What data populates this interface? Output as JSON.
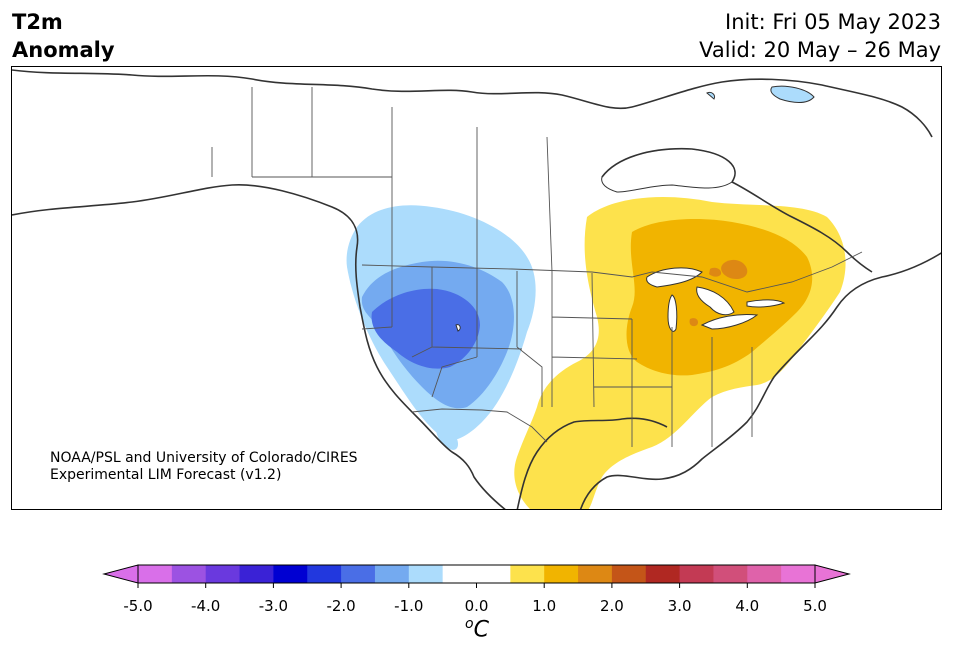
{
  "title": {
    "line1": "T2m",
    "line2": "Anomaly"
  },
  "init_label": "Init: Fri 05 May 2023",
  "valid_label": "Valid: 20 May – 26 May",
  "credit": {
    "line1": "NOAA/PSL and University of Colorado/CIRES",
    "line2": "Experimental LIM Forecast (v1.2)"
  },
  "colorbar": {
    "unit_base": "C",
    "unit_sup": "o",
    "ticks": [
      "-5.0",
      "-4.0",
      "-3.0",
      "-2.0",
      "-1.0",
      "0.0",
      "1.0",
      "2.0",
      "3.0",
      "4.0",
      "5.0"
    ],
    "colors": [
      "#d96fe9",
      "#9c52e2",
      "#6a39de",
      "#3a22d6",
      "#0000d2",
      "#2238de",
      "#4a6ee6",
      "#74aaf0",
      "#acdcfc",
      "#ffffff",
      "#ffffff",
      "#fde24c",
      "#f1b400",
      "#dd8814",
      "#c45518",
      "#b02822",
      "#c33a54",
      "#d14f7a",
      "#df62aa",
      "#e873d6"
    ],
    "under_color": "#d96fe9",
    "over_color": "#e873d6"
  },
  "colors": {
    "coast": "#333333",
    "border": "#555555",
    "cool1": "#acdcfc",
    "cool2": "#74aaf0",
    "cool3": "#4a6ee6",
    "warm1": "#fde24c",
    "warm2": "#f1b400",
    "warm3": "#dd8814"
  }
}
